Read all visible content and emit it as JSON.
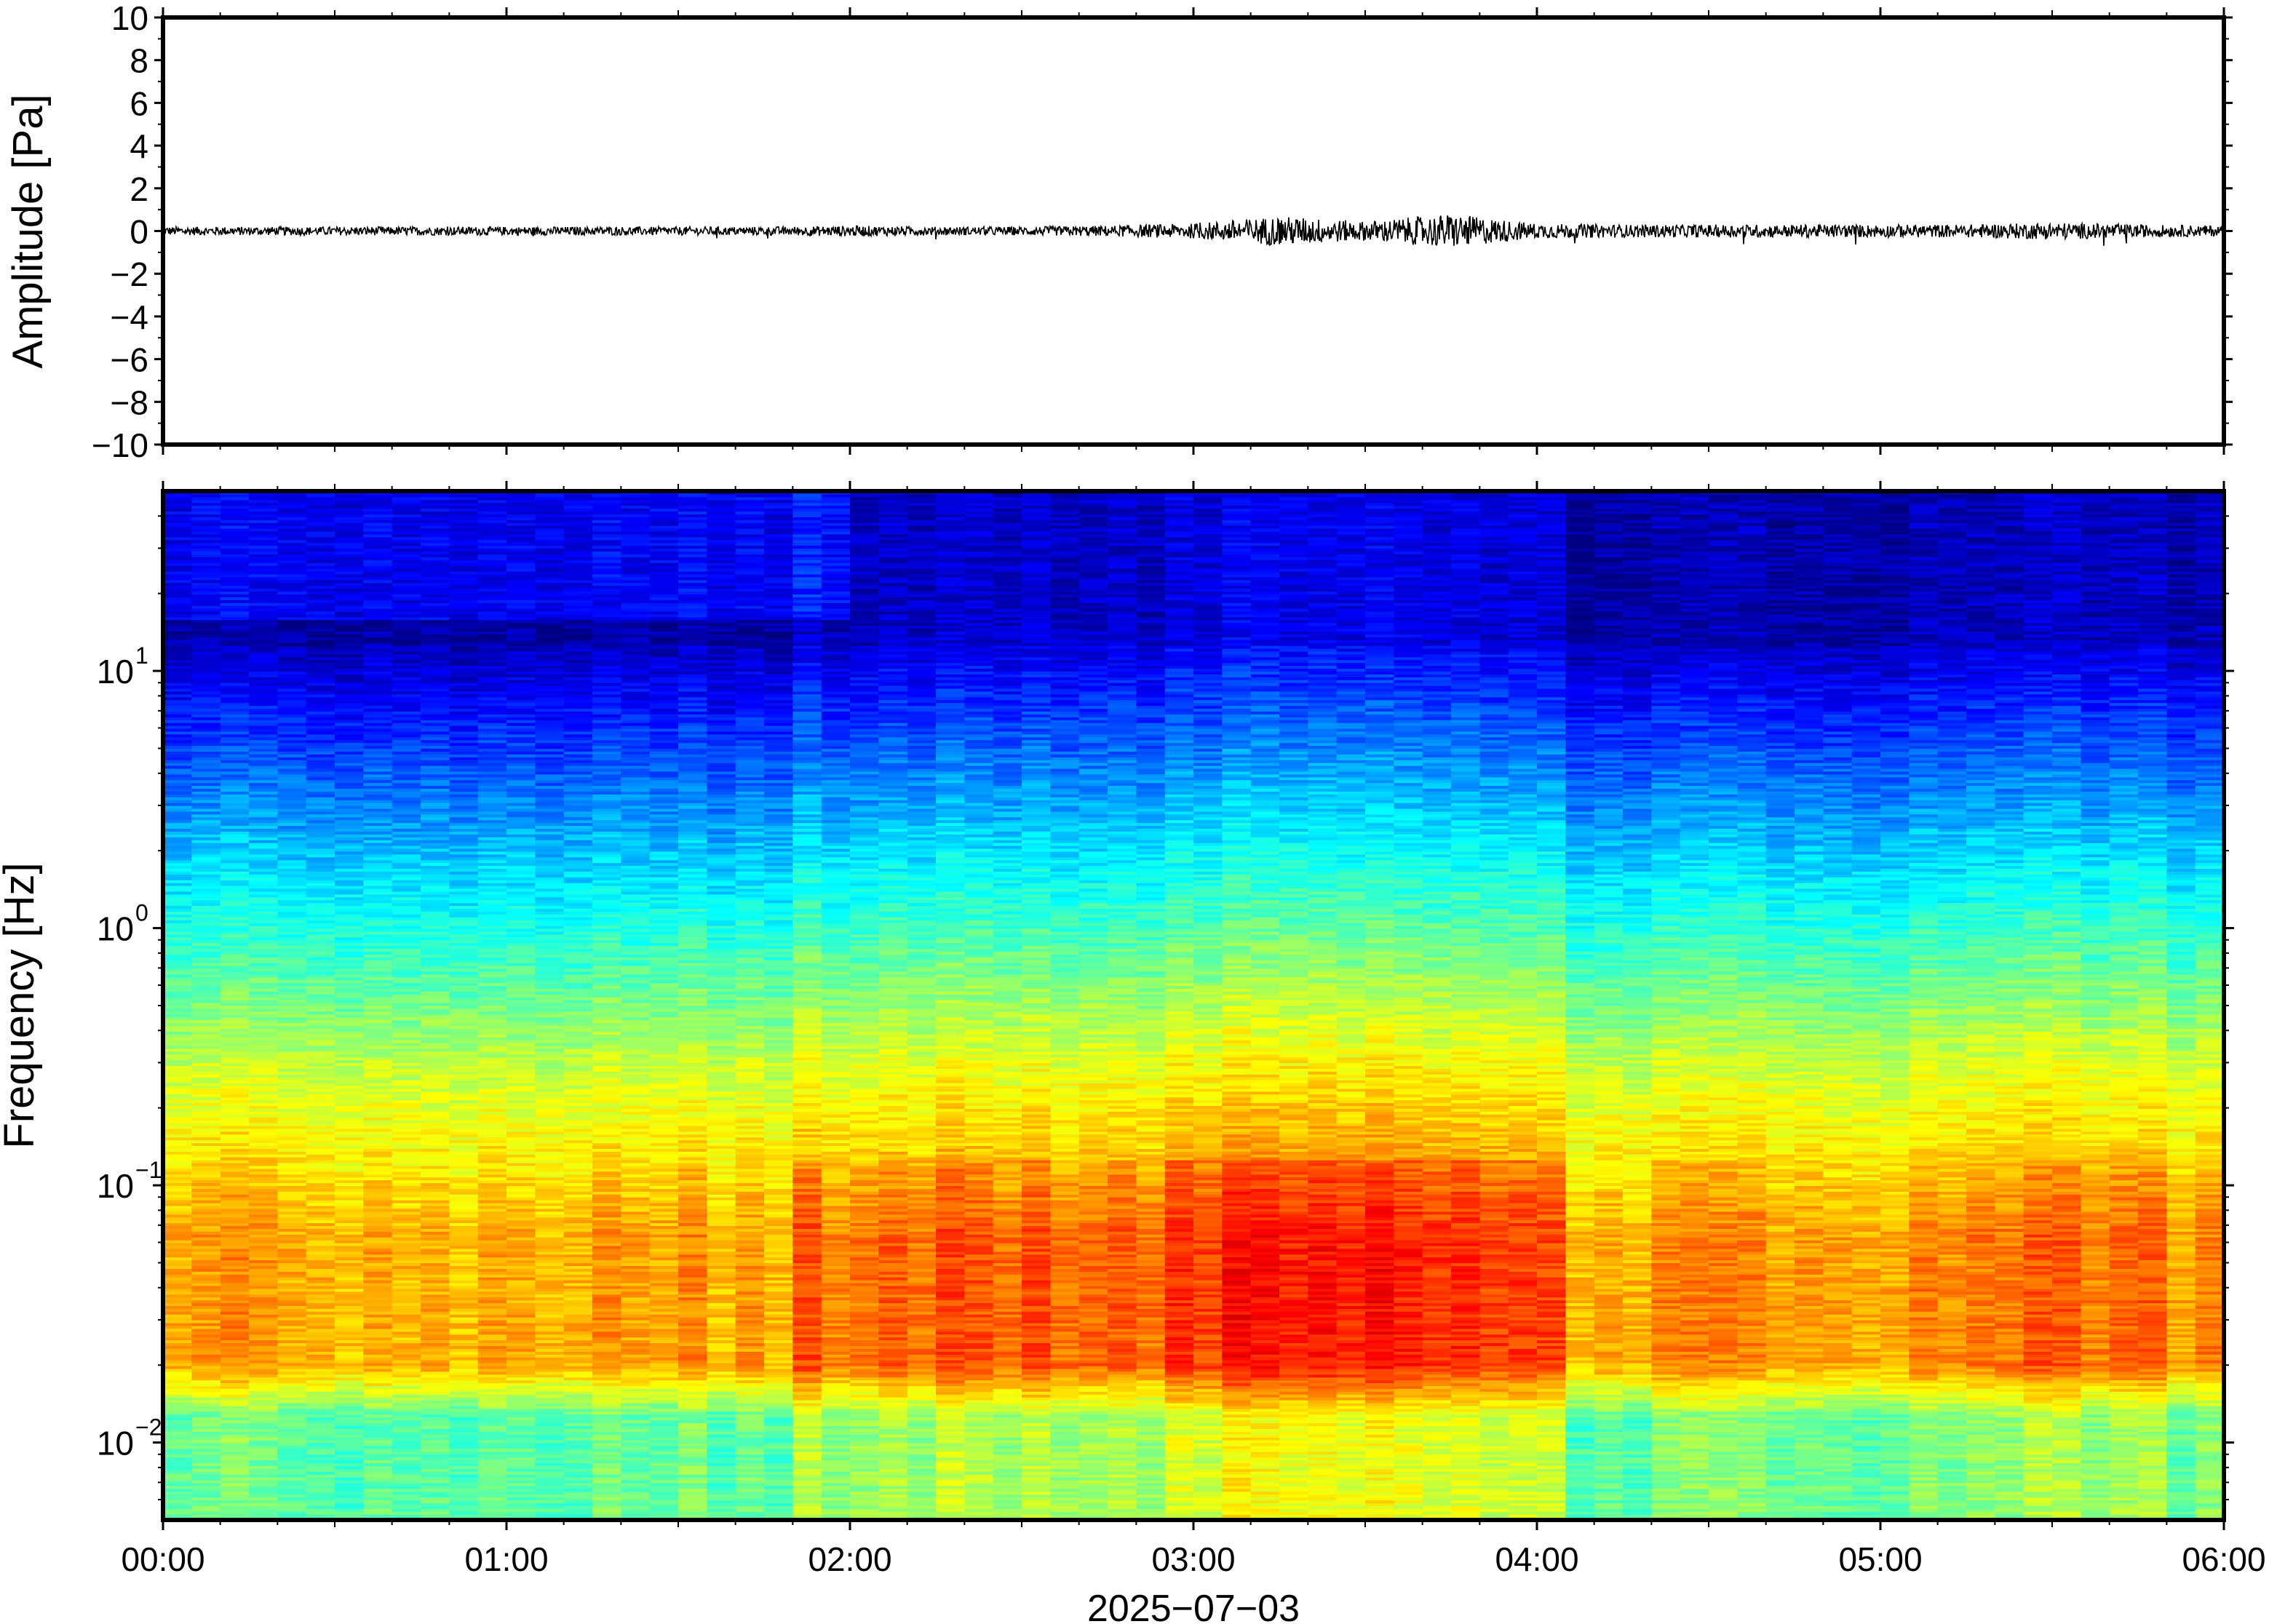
{
  "chart_data": [
    {
      "type": "line",
      "ylabel": "Amplitude [Pa]",
      "ylim": [
        -10,
        10
      ],
      "yticks": [
        "10",
        "8",
        "6",
        "4",
        "2",
        "0",
        "−2",
        "−4",
        "−6",
        "−8",
        "−10"
      ],
      "ytick_values": [
        10,
        8,
        6,
        4,
        2,
        0,
        -2,
        -4,
        -6,
        -8,
        -10
      ],
      "xlim_hours": [
        0,
        6
      ],
      "series": [
        {
          "x_hours": [
            0.0,
            0.25,
            0.5,
            0.75,
            1.0,
            1.25,
            1.5,
            1.75,
            2.0,
            2.25,
            2.5,
            2.75,
            3.0,
            3.25,
            3.5,
            3.75,
            4.0,
            4.25,
            4.5,
            4.75,
            5.0,
            5.25,
            5.5,
            5.75,
            6.0
          ],
          "envelope_pa": [
            0.2,
            0.2,
            0.2,
            0.2,
            0.2,
            0.2,
            0.2,
            0.2,
            0.25,
            0.2,
            0.2,
            0.25,
            0.35,
            0.7,
            0.45,
            0.8,
            0.35,
            0.3,
            0.3,
            0.3,
            0.3,
            0.3,
            0.4,
            0.3,
            0.25
          ]
        }
      ]
    },
    {
      "type": "heatmap",
      "ylabel": "Frequency [Hz]",
      "yscale": "log",
      "ylim_hz": [
        0.005,
        50
      ],
      "yticks": [
        {
          "base": "10",
          "exp": "1",
          "value": 10
        },
        {
          "base": "10",
          "exp": "0",
          "value": 1
        },
        {
          "base": "10",
          "exp": "−1",
          "value": 0.1
        },
        {
          "base": "10",
          "exp": "−2",
          "value": 0.01
        }
      ],
      "xlabel": "2025−07−03",
      "xticks": [
        "00:00",
        "01:00",
        "02:00",
        "03:00",
        "04:00",
        "05:00",
        "06:00"
      ],
      "xtick_hours": [
        0,
        1,
        2,
        3,
        4,
        5,
        6
      ],
      "colormap": "jet",
      "colors": {
        "background_dark_blue": "#0b0f78",
        "hot_orange": "#f28c38",
        "mid_cyan": "#5fd8e6",
        "yellow_green": "#d8f08a"
      }
    }
  ]
}
